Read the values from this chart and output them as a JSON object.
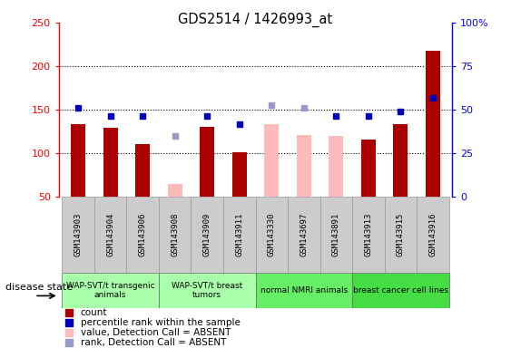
{
  "title": "GDS2514 / 1426993_at",
  "samples": [
    "GSM143903",
    "GSM143904",
    "GSM143906",
    "GSM143908",
    "GSM143909",
    "GSM143911",
    "GSM143330",
    "GSM143697",
    "GSM143891",
    "GSM143913",
    "GSM143915",
    "GSM143916"
  ],
  "count_values": [
    133,
    129,
    110,
    null,
    130,
    101,
    null,
    null,
    null,
    116,
    133,
    218
  ],
  "count_absent": [
    null,
    null,
    null,
    65,
    null,
    null,
    133,
    121,
    120,
    null,
    null,
    null
  ],
  "rank_present": [
    152,
    143,
    143,
    null,
    143,
    133,
    null,
    null,
    143,
    143,
    148,
    163
  ],
  "rank_absent": [
    null,
    null,
    null,
    120,
    null,
    null,
    155,
    152,
    null,
    null,
    null,
    null
  ],
  "groups": [
    {
      "label": "WAP-SVT/t transgenic\nanimals",
      "start": 0,
      "end": 2,
      "color": "#aaffaa"
    },
    {
      "label": "WAP-SVT/t breast\ntumors",
      "start": 3,
      "end": 5,
      "color": "#aaffaa"
    },
    {
      "label": "normal NMRI animals",
      "start": 6,
      "end": 8,
      "color": "#66ee66"
    },
    {
      "label": "breast cancer cell lines",
      "start": 9,
      "end": 11,
      "color": "#44dd44"
    }
  ],
  "ylim_left": [
    50,
    250
  ],
  "ylim_right": [
    0,
    100
  ],
  "count_color": "#aa0000",
  "count_absent_color": "#ffbbbb",
  "rank_color": "#0000bb",
  "rank_absent_color": "#9999cc",
  "background_color": "#ffffff",
  "grid_color": "#000000",
  "disease_state_label": "disease state",
  "left_yticks": [
    50,
    100,
    150,
    200,
    250
  ],
  "right_yticks": [
    0,
    25,
    50,
    75,
    100
  ],
  "right_yticklabels": [
    "0",
    "25",
    "50",
    "75",
    "100%"
  ],
  "sample_bg_color": "#cccccc",
  "sample_sep_color": "#999999"
}
